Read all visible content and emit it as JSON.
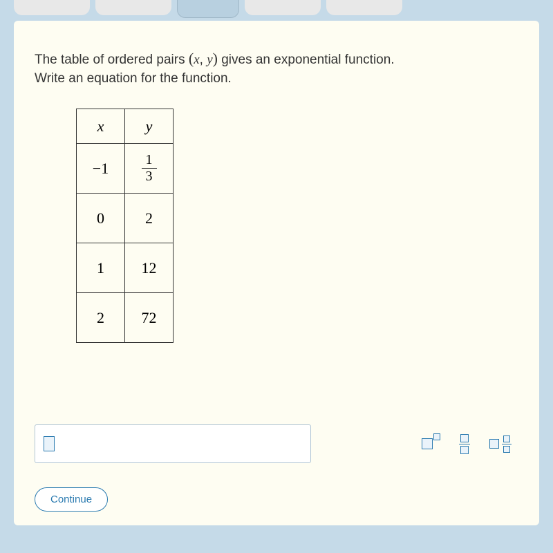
{
  "prompt": {
    "line1_pre": "The table of ordered pairs ",
    "pair_open": "(",
    "pair_x": "x",
    "pair_sep": ", ",
    "pair_y": "y",
    "pair_close": ")",
    "line1_post": " gives an exponential function.",
    "line2": "Write an equation for the function."
  },
  "table": {
    "header_x": "x",
    "header_y": "y",
    "rows": [
      {
        "x": "−1",
        "y_num": "1",
        "y_den": "3",
        "is_fraction": true
      },
      {
        "x": "0",
        "y": "2"
      },
      {
        "x": "1",
        "y": "12"
      },
      {
        "x": "2",
        "y": "72"
      }
    ]
  },
  "continue_label": "Continue",
  "colors": {
    "page_bg": "#c5dae8",
    "panel_bg": "#fefdf2",
    "accent": "#2a7ab0",
    "border": "#333333"
  }
}
